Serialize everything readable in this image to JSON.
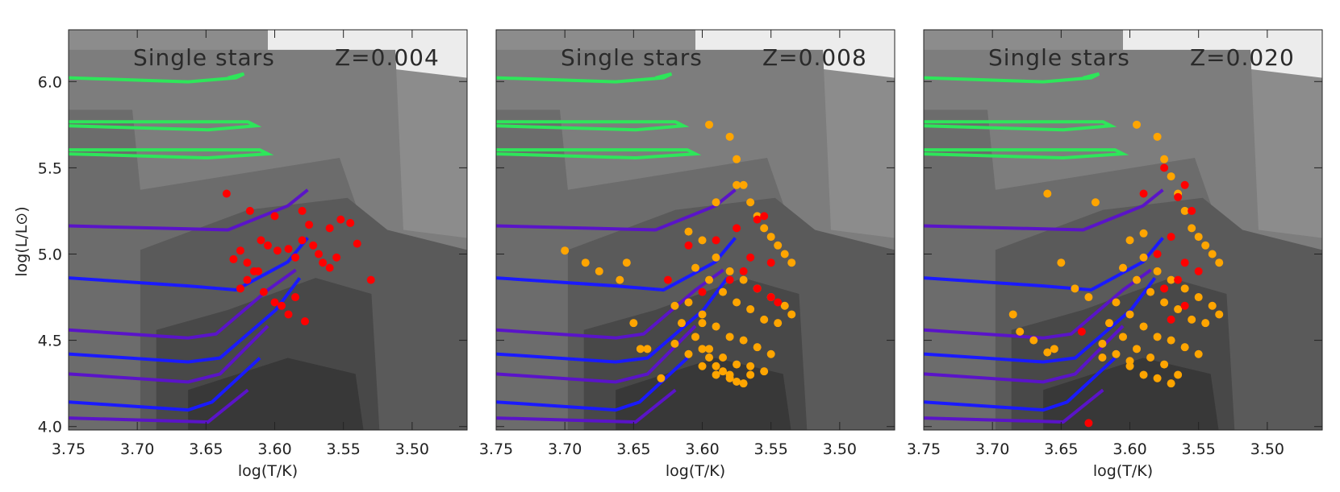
{
  "figure": {
    "ylabel": "log(L/L⊙)",
    "xlabel": "log(T/K)",
    "x_ticks": [
      "3.75",
      "3.70",
      "3.65",
      "3.60",
      "3.55",
      "3.50"
    ],
    "y_ticks": [
      "4.0",
      "4.5",
      "5.0",
      "5.5",
      "6.0"
    ]
  },
  "colors": {
    "bg_light": "#ececec",
    "shades": [
      "#8c8c8c",
      "#7d7d7d",
      "#6c6c6c",
      "#5a5a5a",
      "#484848",
      "#383838"
    ],
    "red_points": "#ff0000",
    "orange_points": "#ffa500",
    "track_purple": "#5a14c8",
    "track_blue": "#1a1aff"
  },
  "chart_data": [
    {
      "type": "scatter",
      "label": "Single stars",
      "metallicity": "Z=0.004",
      "xlim": [
        3.75,
        3.46
      ],
      "ylim": [
        3.98,
        6.3
      ],
      "series": [
        {
          "color": "#ff0000",
          "x": [
            3.635,
            3.618,
            3.6,
            3.58,
            3.575,
            3.56,
            3.552,
            3.545,
            3.54,
            3.63,
            3.625,
            3.62,
            3.615,
            3.61,
            3.605,
            3.598,
            3.59,
            3.585,
            3.58,
            3.572,
            3.568,
            3.565,
            3.56,
            3.555,
            3.53,
            3.625,
            3.62,
            3.612,
            3.608,
            3.6,
            3.595,
            3.59,
            3.585,
            3.578
          ],
          "y": [
            5.35,
            5.25,
            5.22,
            5.25,
            5.17,
            5.15,
            5.2,
            5.18,
            5.06,
            4.97,
            5.02,
            4.95,
            4.9,
            5.08,
            5.05,
            5.02,
            5.03,
            4.98,
            5.08,
            5.05,
            5.0,
            4.95,
            4.92,
            4.98,
            4.85,
            4.8,
            4.85,
            4.9,
            4.78,
            4.72,
            4.7,
            4.65,
            4.75,
            4.61
          ]
        }
      ]
    },
    {
      "type": "scatter",
      "label": "Single stars",
      "metallicity": "Z=0.008",
      "xlim": [
        3.75,
        3.46
      ],
      "ylim": [
        3.98,
        6.3
      ],
      "series": [
        {
          "color": "#ffa500",
          "x": [
            3.595,
            3.58,
            3.575,
            3.57,
            3.565,
            3.56,
            3.555,
            3.55,
            3.545,
            3.54,
            3.535,
            3.6,
            3.59,
            3.58,
            3.57,
            3.56,
            3.55,
            3.54,
            3.535,
            3.605,
            3.595,
            3.585,
            3.575,
            3.565,
            3.555,
            3.545,
            3.61,
            3.6,
            3.59,
            3.58,
            3.57,
            3.56,
            3.55,
            3.615,
            3.605,
            3.595,
            3.585,
            3.575,
            3.565,
            3.62,
            3.61,
            3.6,
            3.59,
            3.58,
            3.57,
            3.6,
            3.595,
            3.59,
            3.585,
            3.58,
            3.575,
            3.565,
            3.555,
            3.7,
            3.685,
            3.675,
            3.66,
            3.655,
            3.65,
            3.645,
            3.64,
            3.63,
            3.62,
            3.6,
            3.59,
            3.575,
            3.61
          ],
          "y": [
            5.75,
            5.68,
            5.55,
            5.4,
            5.3,
            5.22,
            5.15,
            5.1,
            5.05,
            5.0,
            4.95,
            5.08,
            4.98,
            4.9,
            4.85,
            4.8,
            4.75,
            4.7,
            4.65,
            4.92,
            4.85,
            4.78,
            4.72,
            4.68,
            4.62,
            4.6,
            4.72,
            4.65,
            4.58,
            4.52,
            4.5,
            4.46,
            4.42,
            4.6,
            4.52,
            4.45,
            4.4,
            4.36,
            4.3,
            4.48,
            4.42,
            4.35,
            4.3,
            4.28,
            4.25,
            4.45,
            4.4,
            4.35,
            4.32,
            4.3,
            4.26,
            4.35,
            4.32,
            5.02,
            4.95,
            4.9,
            4.85,
            4.95,
            4.6,
            4.45,
            4.45,
            4.28,
            4.7,
            4.6,
            5.3,
            5.4,
            5.13
          ]
        },
        {
          "color": "#ff0000",
          "x": [
            3.61,
            3.59,
            3.575,
            3.56,
            3.555,
            3.55,
            3.565,
            3.57,
            3.58,
            3.56,
            3.55,
            3.545,
            3.625,
            3.6
          ],
          "y": [
            5.05,
            5.08,
            5.15,
            5.2,
            5.22,
            4.95,
            4.98,
            4.9,
            4.85,
            4.8,
            4.75,
            4.72,
            4.85,
            4.78
          ]
        }
      ]
    },
    {
      "type": "scatter",
      "label": "Single stars",
      "metallicity": "Z=0.020",
      "xlim": [
        3.75,
        3.46
      ],
      "ylim": [
        3.98,
        6.3
      ],
      "series": [
        {
          "color": "#ffa500",
          "x": [
            3.595,
            3.58,
            3.575,
            3.57,
            3.565,
            3.56,
            3.555,
            3.55,
            3.545,
            3.54,
            3.535,
            3.6,
            3.59,
            3.58,
            3.57,
            3.56,
            3.55,
            3.54,
            3.535,
            3.605,
            3.595,
            3.585,
            3.575,
            3.565,
            3.555,
            3.545,
            3.61,
            3.6,
            3.59,
            3.58,
            3.57,
            3.56,
            3.55,
            3.615,
            3.605,
            3.595,
            3.585,
            3.575,
            3.565,
            3.62,
            3.61,
            3.6,
            3.59,
            3.58,
            3.57,
            3.685,
            3.68,
            3.67,
            3.66,
            3.655,
            3.65,
            3.64,
            3.63,
            3.62,
            3.6,
            3.59,
            3.66,
            3.625
          ],
          "y": [
            5.75,
            5.68,
            5.55,
            5.45,
            5.35,
            5.25,
            5.15,
            5.1,
            5.05,
            5.0,
            4.95,
            5.08,
            4.98,
            4.9,
            4.85,
            4.8,
            4.75,
            4.7,
            4.65,
            4.92,
            4.85,
            4.78,
            4.72,
            4.68,
            4.62,
            4.6,
            4.72,
            4.65,
            4.58,
            4.52,
            4.5,
            4.46,
            4.42,
            4.6,
            4.52,
            4.45,
            4.4,
            4.36,
            4.3,
            4.48,
            4.42,
            4.35,
            4.3,
            4.28,
            4.25,
            4.65,
            4.55,
            4.5,
            4.43,
            4.45,
            4.95,
            4.8,
            4.75,
            4.4,
            4.38,
            5.12,
            5.35,
            5.3
          ]
        },
        {
          "color": "#ff0000",
          "x": [
            3.59,
            3.575,
            3.565,
            3.56,
            3.555,
            3.57,
            3.58,
            3.56,
            3.55,
            3.565,
            3.575,
            3.56,
            3.57,
            3.635,
            3.63
          ],
          "y": [
            5.35,
            5.5,
            5.33,
            5.4,
            5.25,
            5.1,
            5.0,
            4.95,
            4.9,
            4.85,
            4.8,
            4.7,
            4.62,
            4.55,
            4.02
          ]
        }
      ]
    }
  ]
}
